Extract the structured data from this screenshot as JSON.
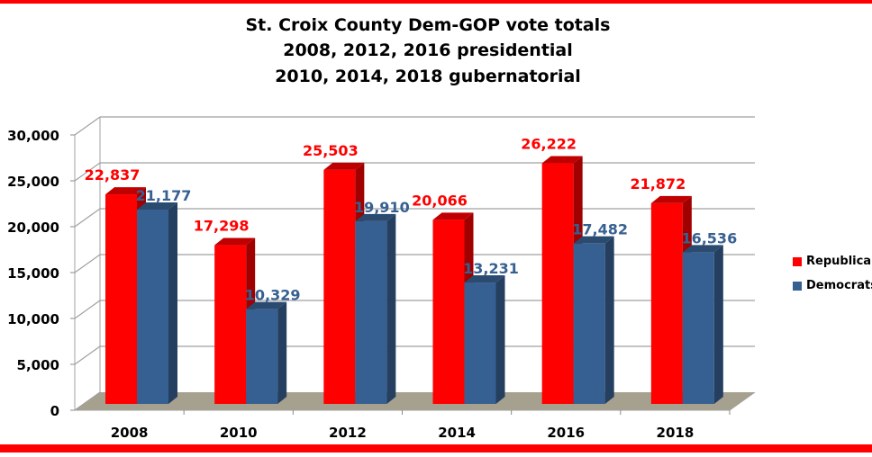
{
  "chart_data": {
    "type": "bar",
    "style": "3d-clustered",
    "title": [
      "St.  Croix County Dem-GOP vote totals",
      "2008, 2012, 2016 presidential",
      "2010, 2014, 2018 gubernatorial"
    ],
    "categories": [
      "2008",
      "2010",
      "2012",
      "2014",
      "2016",
      "2018"
    ],
    "series": [
      {
        "name": "Republican",
        "color": "#ff0000",
        "label_color": "#ff0000",
        "values": [
          22837,
          17298,
          25503,
          20066,
          26222,
          21872
        ],
        "labels": [
          "22,837",
          "17,298",
          "25,503",
          "20,066",
          "26,222",
          "21,872"
        ]
      },
      {
        "name": "Democrats",
        "color": "#376092",
        "label_color": "#376092",
        "values": [
          21177,
          10329,
          19910,
          13231,
          17482,
          16536
        ],
        "labels": [
          "21,177",
          "10,329",
          "19,910",
          "13,231",
          "17,482",
          "16,536"
        ]
      }
    ],
    "yticks": [
      "0",
      "5,000",
      "10,000",
      "15,000",
      "20,000",
      "25,000",
      "30,000"
    ],
    "ylim": [
      0,
      30000
    ],
    "grid": true,
    "legend_position": "right",
    "floor_color": "#a6a08e"
  }
}
